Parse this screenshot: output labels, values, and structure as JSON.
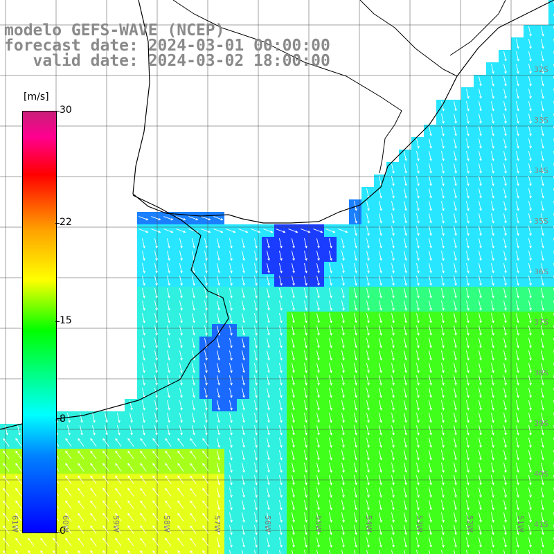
{
  "title": {
    "line1": "modelo GEFS-WAVE (NCEP)",
    "line2": "forecast date: 2024-03-01 00:00:00",
    "line3": "   valid date: 2024-03-02 18:00:00"
  },
  "colorbar": {
    "unit": "[m/s]",
    "ticks": [
      {
        "label": "30",
        "value": 30
      },
      {
        "label": "22",
        "value": 22
      },
      {
        "label": "15",
        "value": 15
      },
      {
        "label": "8",
        "value": 8
      },
      {
        "label": "0",
        "value": 0
      }
    ],
    "range": [
      0,
      30
    ],
    "colors": [
      "#0000ff",
      "#0080ff",
      "#00ffff",
      "#00ff00",
      "#ffff00",
      "#ffa000",
      "#ff0000",
      "#c81e78"
    ]
  },
  "map": {
    "longitude_labels": [
      "61W",
      "60W",
      "59W",
      "58W",
      "57W",
      "56W",
      "55W",
      "54W",
      "53W",
      "52W",
      "51W"
    ],
    "latitude_labels": [
      "32S",
      "33S",
      "34S",
      "35S",
      "36S",
      "37S",
      "38S",
      "39S",
      "40S",
      "41S"
    ],
    "grid": true,
    "land_color": "#ffffff",
    "coastline_color": "#000000",
    "vector_color": "#ffffff"
  }
}
